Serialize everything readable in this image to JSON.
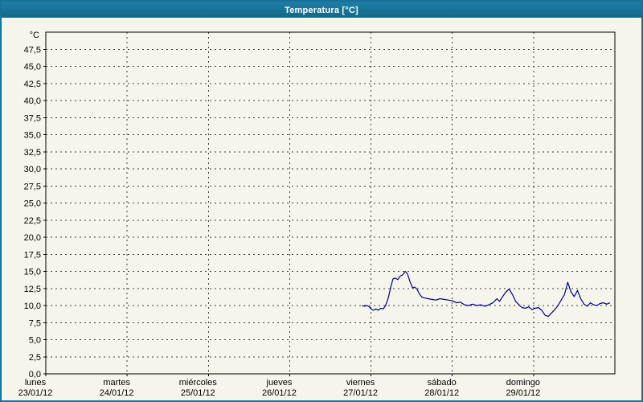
{
  "window": {
    "title": "Temperatura [°C]",
    "titlebar_color": "#17749a",
    "background_color": "#f6f5ec"
  },
  "chart_data": {
    "type": "line",
    "title": "Temperatura [°C]",
    "unit_label": "°C",
    "ylim": [
      0,
      50
    ],
    "ytick_step": 2.5,
    "grid": "dashed",
    "legend": "none",
    "plot_bg": "#f6f5ec",
    "line_color": "#00008b",
    "yticks": [
      {
        "value": 0,
        "label": "0,0"
      },
      {
        "value": 2.5,
        "label": "2,5"
      },
      {
        "value": 5,
        "label": "5,0"
      },
      {
        "value": 7.5,
        "label": "7,5"
      },
      {
        "value": 10,
        "label": "10,0"
      },
      {
        "value": 12.5,
        "label": "12,5"
      },
      {
        "value": 15,
        "label": "15,0"
      },
      {
        "value": 17.5,
        "label": "17,5"
      },
      {
        "value": 20,
        "label": "20,0"
      },
      {
        "value": 22.5,
        "label": "22,5"
      },
      {
        "value": 25,
        "label": "25,0"
      },
      {
        "value": 27.5,
        "label": "27,5"
      },
      {
        "value": 30,
        "label": "30,0"
      },
      {
        "value": 32.5,
        "label": "32,5"
      },
      {
        "value": 35,
        "label": "35,0"
      },
      {
        "value": 37.5,
        "label": "37,5"
      },
      {
        "value": 40,
        "label": "40,0"
      },
      {
        "value": 42.5,
        "label": "42,5"
      },
      {
        "value": 45,
        "label": "45,0"
      },
      {
        "value": 47.5,
        "label": "47,5"
      }
    ],
    "xlim_days": [
      0,
      7
    ],
    "xticks": [
      {
        "day": 0,
        "weekday": "lunes",
        "date": "23/01/12"
      },
      {
        "day": 1,
        "weekday": "martes",
        "date": "24/01/12"
      },
      {
        "day": 2,
        "weekday": "miércoles",
        "date": "25/01/12"
      },
      {
        "day": 3,
        "weekday": "jueves",
        "date": "26/01/12"
      },
      {
        "day": 4,
        "weekday": "viernes",
        "date": "27/01/12"
      },
      {
        "day": 5,
        "weekday": "sábado",
        "date": "28/01/12"
      },
      {
        "day": 6,
        "weekday": "domingo",
        "date": "29/01/12"
      }
    ],
    "series": [
      {
        "name": "Temperatura",
        "points": [
          [
            3.89,
            10.0
          ],
          [
            3.92,
            9.9
          ],
          [
            3.95,
            10.0
          ],
          [
            3.98,
            9.8
          ],
          [
            4.0,
            9.5
          ],
          [
            4.03,
            9.3
          ],
          [
            4.06,
            9.5
          ],
          [
            4.09,
            9.3
          ],
          [
            4.12,
            9.6
          ],
          [
            4.15,
            9.5
          ],
          [
            4.18,
            10.0
          ],
          [
            4.21,
            11.0
          ],
          [
            4.24,
            12.5
          ],
          [
            4.27,
            13.9
          ],
          [
            4.3,
            14.0
          ],
          [
            4.33,
            13.8
          ],
          [
            4.36,
            14.3
          ],
          [
            4.39,
            14.5
          ],
          [
            4.42,
            15.0
          ],
          [
            4.45,
            14.6
          ],
          [
            4.48,
            13.5
          ],
          [
            4.51,
            12.6
          ],
          [
            4.54,
            12.7
          ],
          [
            4.57,
            12.3
          ],
          [
            4.6,
            11.6
          ],
          [
            4.63,
            11.2
          ],
          [
            4.66,
            11.1
          ],
          [
            4.7,
            11.0
          ],
          [
            4.75,
            10.9
          ],
          [
            4.8,
            10.8
          ],
          [
            4.85,
            11.0
          ],
          [
            4.9,
            10.9
          ],
          [
            4.95,
            10.8
          ],
          [
            5.0,
            10.7
          ],
          [
            5.05,
            10.4
          ],
          [
            5.1,
            10.5
          ],
          [
            5.15,
            10.1
          ],
          [
            5.2,
            10.0
          ],
          [
            5.25,
            10.2
          ],
          [
            5.3,
            10.0
          ],
          [
            5.35,
            10.1
          ],
          [
            5.4,
            9.9
          ],
          [
            5.45,
            10.1
          ],
          [
            5.5,
            10.4
          ],
          [
            5.55,
            11.0
          ],
          [
            5.58,
            10.6
          ],
          [
            5.62,
            11.3
          ],
          [
            5.66,
            12.0
          ],
          [
            5.7,
            12.4
          ],
          [
            5.74,
            11.6
          ],
          [
            5.78,
            10.6
          ],
          [
            5.82,
            10.1
          ],
          [
            5.86,
            9.7
          ],
          [
            5.9,
            9.6
          ],
          [
            5.94,
            9.8
          ],
          [
            5.98,
            9.4
          ],
          [
            6.02,
            9.6
          ],
          [
            6.06,
            9.7
          ],
          [
            6.1,
            9.3
          ],
          [
            6.14,
            8.6
          ],
          [
            6.18,
            8.4
          ],
          [
            6.22,
            8.9
          ],
          [
            6.26,
            9.4
          ],
          [
            6.3,
            10.0
          ],
          [
            6.34,
            10.8
          ],
          [
            6.38,
            11.6
          ],
          [
            6.42,
            13.4
          ],
          [
            6.46,
            12.0
          ],
          [
            6.5,
            11.3
          ],
          [
            6.54,
            12.2
          ],
          [
            6.58,
            11.0
          ],
          [
            6.62,
            10.2
          ],
          [
            6.66,
            9.9
          ],
          [
            6.7,
            10.4
          ],
          [
            6.74,
            10.1
          ],
          [
            6.78,
            10.0
          ],
          [
            6.82,
            10.3
          ],
          [
            6.86,
            10.4
          ],
          [
            6.9,
            10.2
          ],
          [
            6.94,
            10.4
          ]
        ]
      }
    ]
  }
}
